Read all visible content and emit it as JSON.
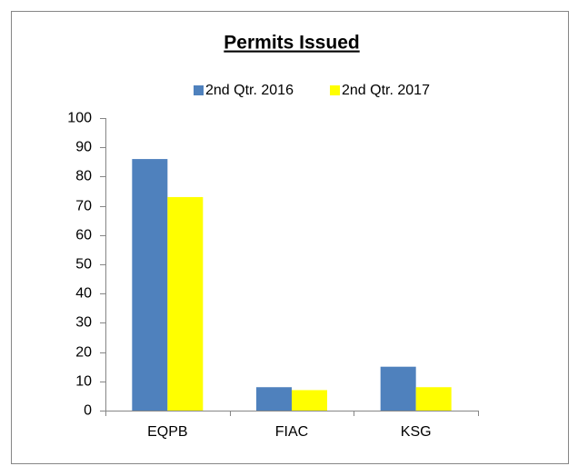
{
  "chart_data": {
    "type": "bar",
    "title": "Permits Issued",
    "categories": [
      "EQPB",
      "FIAC",
      "KSG"
    ],
    "series": [
      {
        "name": "2nd Qtr. 2016",
        "color": "#4f81bd",
        "values": [
          86,
          8,
          15
        ]
      },
      {
        "name": "2nd Qtr. 2017",
        "color": "#ffff00",
        "values": [
          73,
          7,
          8
        ]
      }
    ],
    "ylim": [
      0,
      100
    ],
    "yticks": [
      0,
      10,
      20,
      30,
      40,
      50,
      60,
      70,
      80,
      90,
      100
    ],
    "grid": false,
    "legend": "top"
  }
}
